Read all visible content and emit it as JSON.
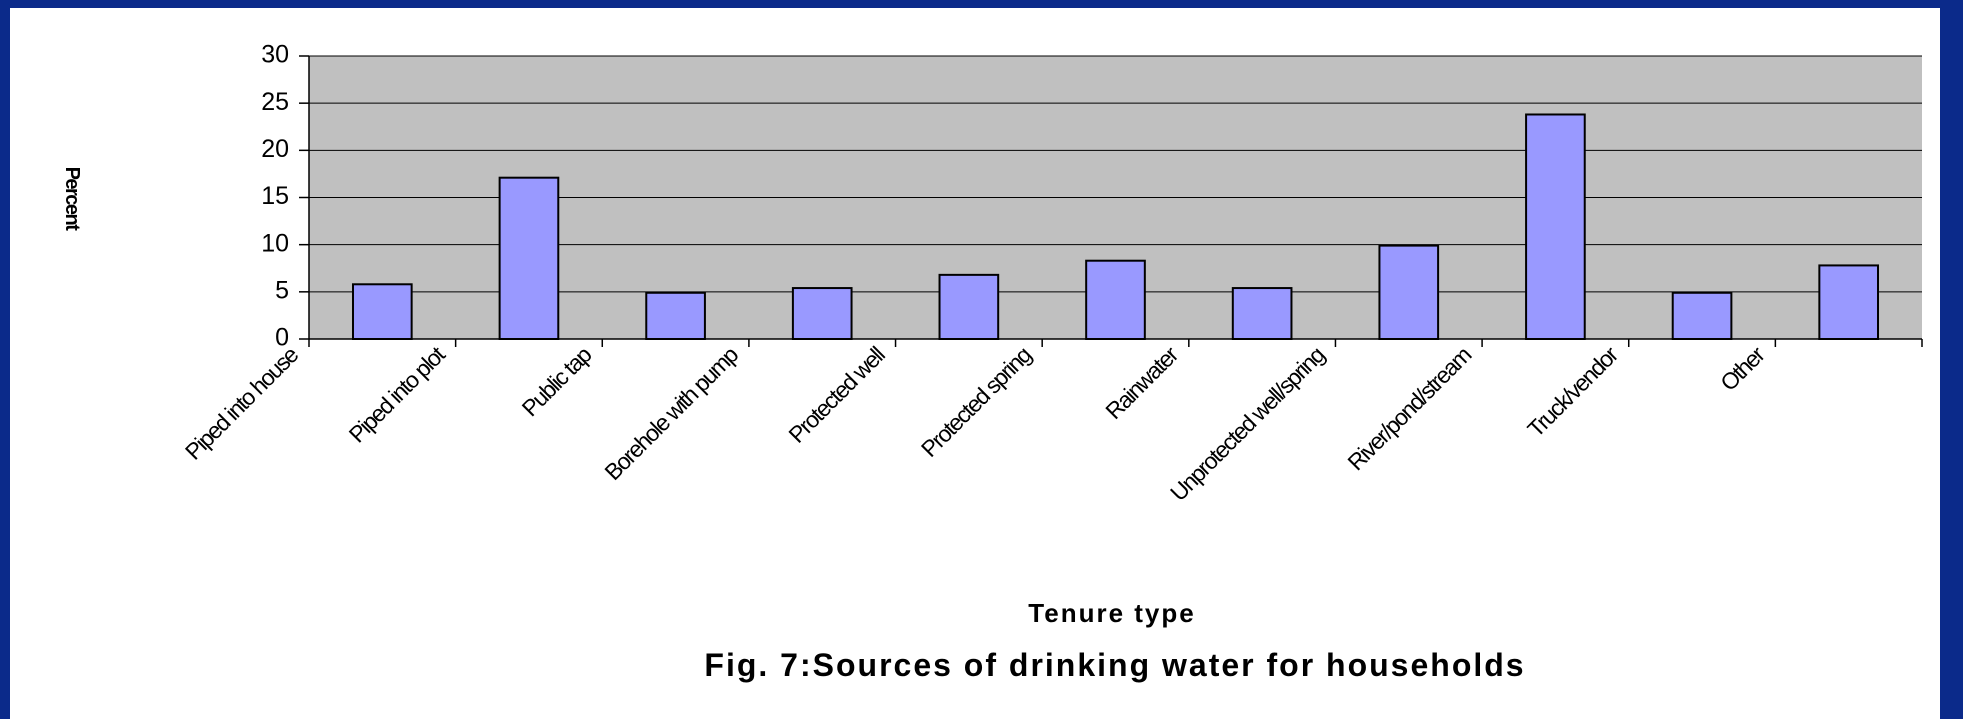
{
  "chart_data": {
    "type": "bar",
    "title": "Fig. 7:Sources of drinking water for households",
    "x_label": "Tenure type",
    "y_label": "Percent",
    "categories": [
      "Piped into house",
      "Piped into plot",
      "Public tap",
      "Borehole with pump",
      "Protected well",
      "Protected spring",
      "Rainwater",
      "Unprotected well/spring",
      "River/pond/stream",
      "Truck/vendor",
      "Other"
    ],
    "values": [
      5.8,
      17.1,
      4.9,
      5.4,
      6.8,
      8.3,
      5.4,
      9.9,
      23.8,
      4.9,
      7.8
    ],
    "color": "#9999ff",
    "ylim": [
      0,
      30
    ],
    "yticks": [
      0,
      5,
      10,
      15,
      20,
      25,
      30
    ],
    "grid": true
  }
}
